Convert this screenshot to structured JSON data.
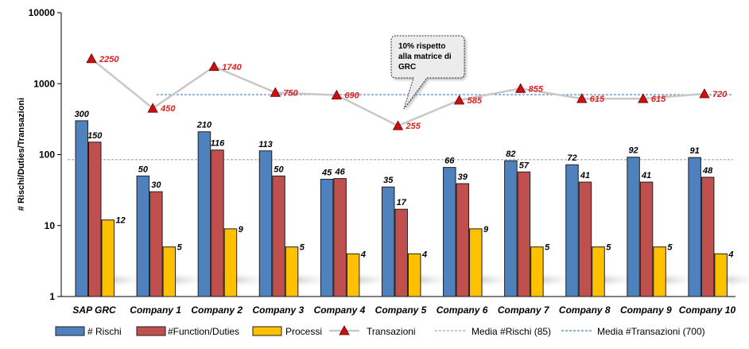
{
  "chart_data": {
    "type": "bar",
    "yscale": "log",
    "ylim": [
      1,
      10000
    ],
    "ylabel": "# Rischi/Duties/Transazioni",
    "yticks": [
      "1",
      "10",
      "100",
      "1000",
      "10000"
    ],
    "categories": [
      "SAP GRC",
      "Company 1",
      "Company 2",
      "Company 3",
      "Company 4",
      "Company 5",
      "Company 6",
      "Company 7",
      "Company 8",
      "Company 9",
      "Company 10"
    ],
    "series": [
      {
        "name": "# Rischi",
        "type": "bar",
        "color": "#4f81bd",
        "values": [
          300,
          50,
          210,
          113,
          45,
          35,
          66,
          82,
          72,
          92,
          91
        ]
      },
      {
        "name": "#Function/Duties",
        "type": "bar",
        "color": "#c0504d",
        "values": [
          150,
          30,
          116,
          50,
          46,
          17,
          39,
          57,
          41,
          41,
          48
        ]
      },
      {
        "name": "Processi",
        "type": "bar",
        "color": "#ffc000",
        "values": [
          12,
          5,
          9,
          5,
          4,
          4,
          9,
          5,
          5,
          5,
          4
        ]
      },
      {
        "name": "Transazioni",
        "type": "line",
        "color": "#c8c8c8",
        "marker_color": "#cc1010",
        "values": [
          2250,
          450,
          1740,
          750,
          690,
          255,
          585,
          855,
          615,
          615,
          720
        ]
      }
    ],
    "reference_lines": [
      {
        "name": "Media #Rischi (85)",
        "value": 85,
        "color": "#8ea9c8"
      },
      {
        "name": "Media #Transazioni (700)",
        "value": 700,
        "color": "#4a7ec0"
      }
    ],
    "annotation": {
      "lines": [
        "10% rispetto",
        "alla matrice di",
        "GRC"
      ],
      "points_to": "Company 5"
    },
    "legend_position": "bottom"
  }
}
